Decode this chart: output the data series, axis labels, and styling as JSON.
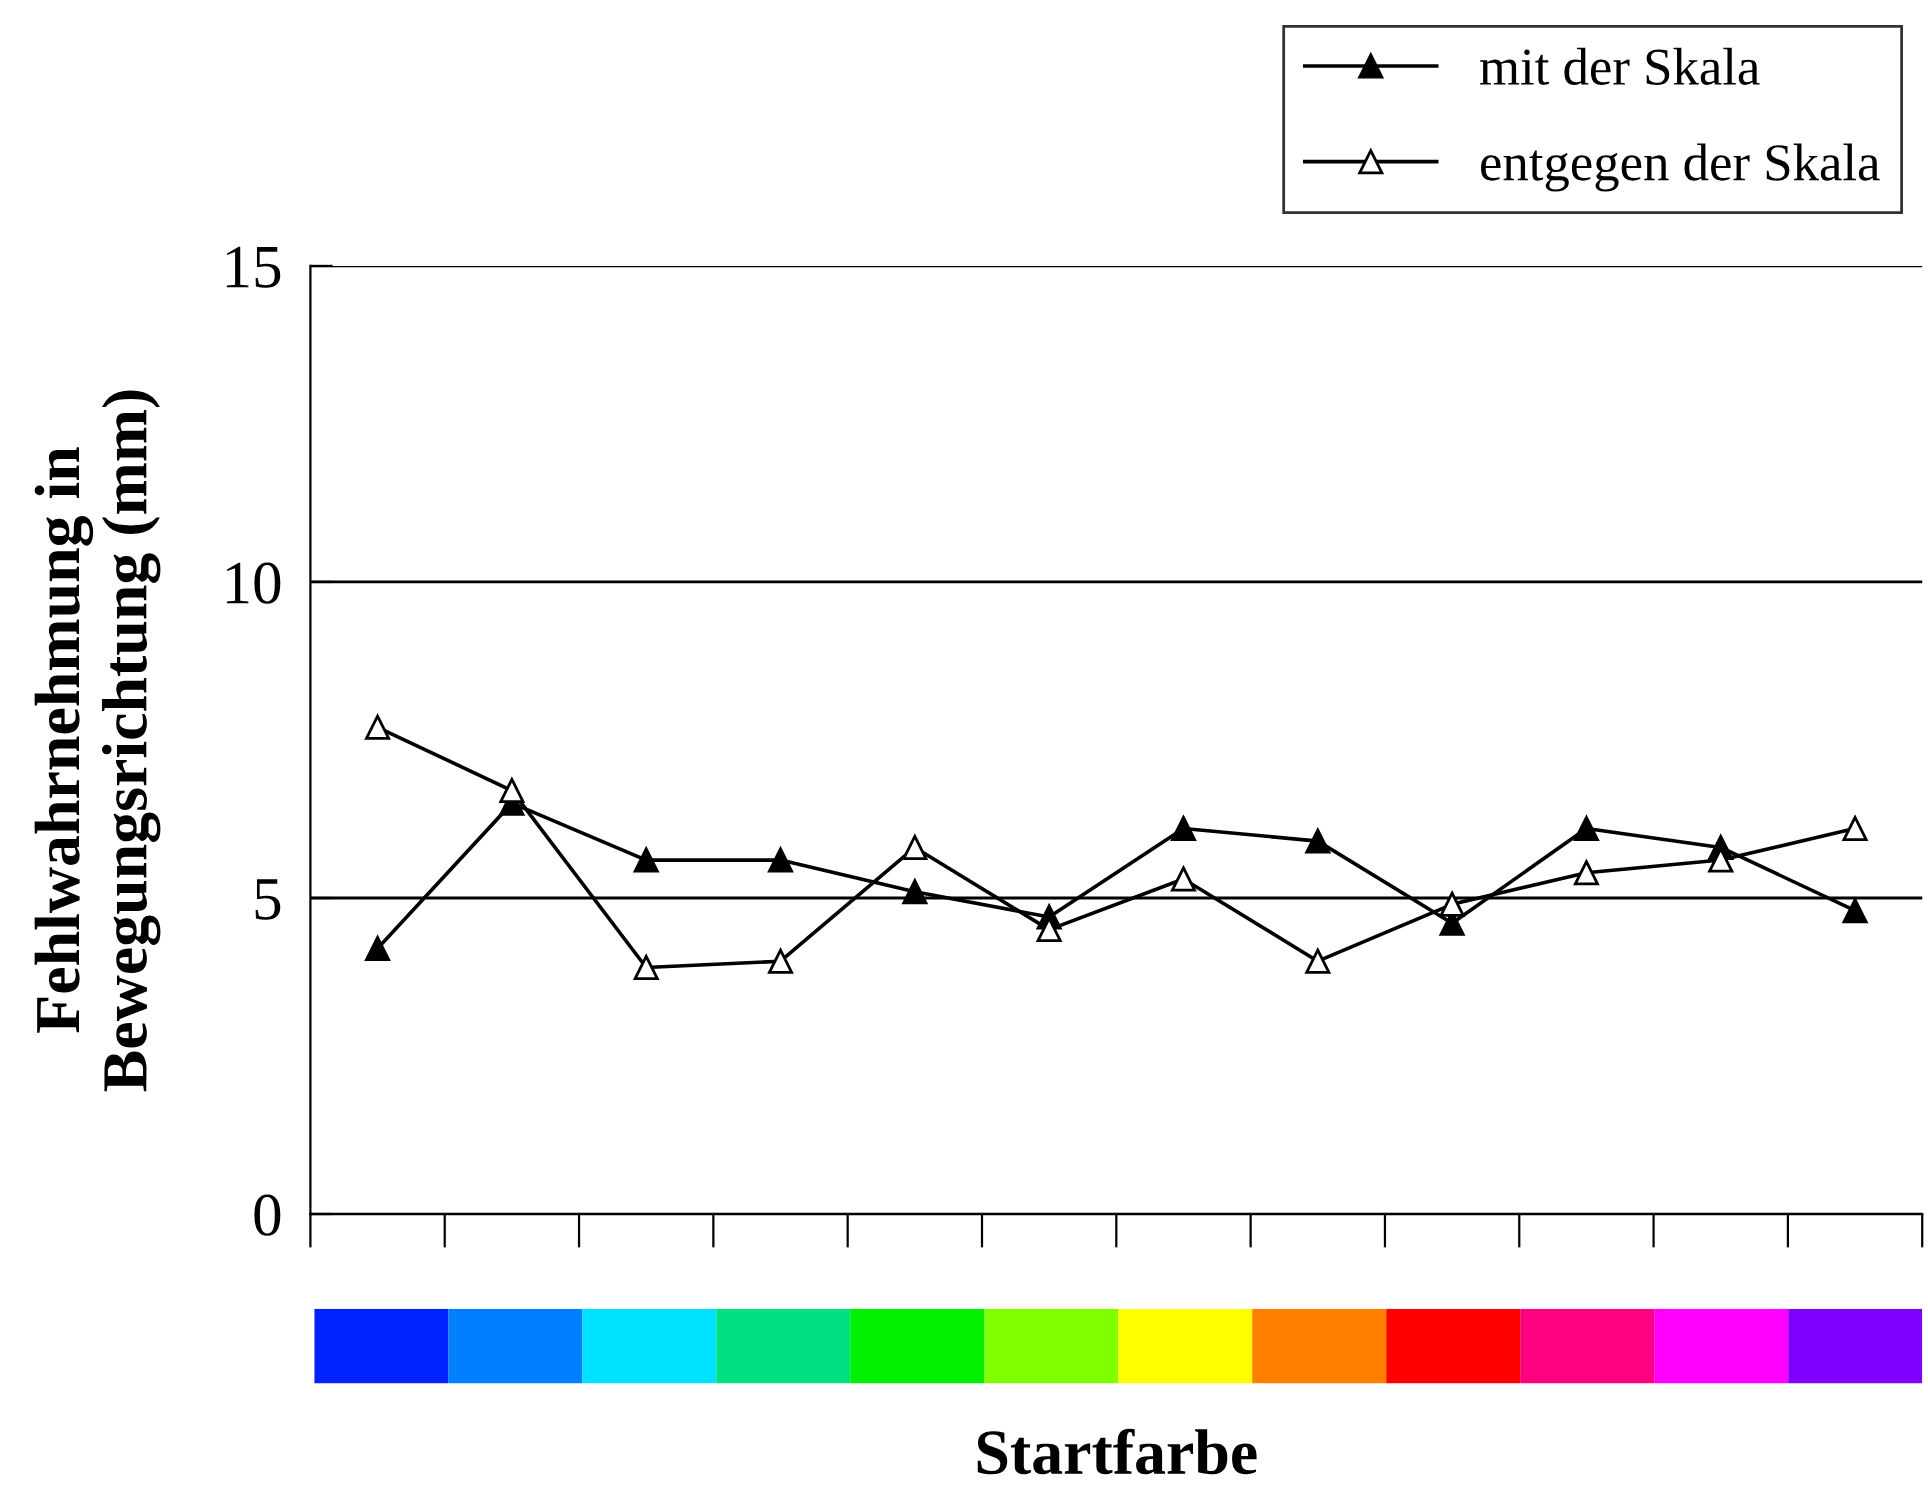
{
  "chart_data": {
    "type": "line",
    "xlabel": "Startfarbe",
    "ylabel": "Fehlwahrnehmung in\nBewegungsrichtung (mm)",
    "categories": [
      null,
      null,
      null,
      null,
      null,
      null,
      null,
      null,
      null,
      null,
      null,
      null
    ],
    "series": [
      {
        "name": "mit der Skala",
        "color": "#000000",
        "marker": "triangle",
        "values": [
          4.2,
          6.5,
          5.6,
          5.6,
          5.1,
          4.7,
          6.1,
          5.9,
          4.6,
          6.1,
          5.8,
          4.8
        ]
      },
      {
        "name": "entgegen der Skala",
        "color": "#000000",
        "marker": "triangle_open",
        "values": [
          7.7,
          6.7,
          3.9,
          4.0,
          5.8,
          4.5,
          5.3,
          4.0,
          4.9,
          5.4,
          5.6,
          6.1
        ]
      }
    ],
    "ylim": [
      0,
      15
    ],
    "yticks": [
      0,
      5,
      10,
      15
    ],
    "grid": "y",
    "legend": "top right",
    "line_style": "solid"
  }
}
